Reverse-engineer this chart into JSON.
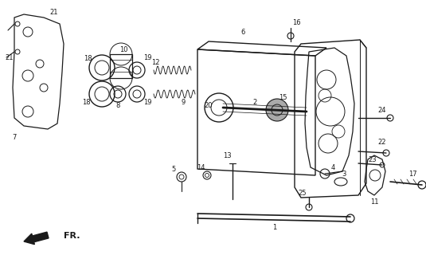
{
  "bg_color": "#ffffff",
  "line_color": "#1a1a1a",
  "fig_width": 5.35,
  "fig_height": 3.2,
  "dpi": 100,
  "label_fs": 6.0,
  "lw": 0.7
}
